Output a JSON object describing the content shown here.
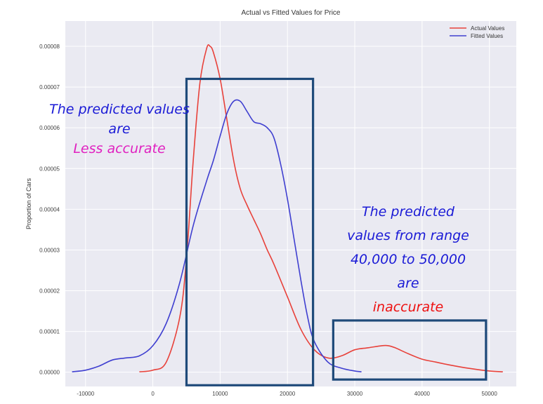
{
  "chart_data": {
    "type": "line",
    "title": "Actual vs Fitted Values for Price",
    "xlabel": "",
    "ylabel": "Proportion of Cars",
    "xlim": [
      -13000,
      54000
    ],
    "ylim": [
      -3.5e-06,
      8.62e-05
    ],
    "xticks": [
      "-10000",
      "0",
      "10000",
      "20000",
      "30000",
      "40000",
      "50000"
    ],
    "xtick_values": [
      -10000,
      0,
      10000,
      20000,
      30000,
      40000,
      50000
    ],
    "yticks": [
      "0.00000",
      "0.00001",
      "0.00002",
      "0.00003",
      "0.00004",
      "0.00005",
      "0.00006",
      "0.00007",
      "0.00008"
    ],
    "ytick_values": [
      0,
      1e-05,
      2e-05,
      3e-05,
      4e-05,
      5e-05,
      6e-05,
      7e-05,
      8e-05
    ],
    "grid": true,
    "legend_position": "top-right",
    "series": [
      {
        "name": "Actual Values",
        "color": "#e8413a",
        "x": [
          -2000,
          0,
          2000,
          4000,
          5000,
          6000,
          7000,
          8000,
          8500,
          9000,
          10000,
          11000,
          12000,
          13000,
          14000,
          15000,
          16000,
          17000,
          18000,
          20000,
          22000,
          24000,
          26000,
          28000,
          30000,
          32000,
          34000,
          35000,
          36000,
          38000,
          40000,
          42000,
          44000,
          46000,
          48000,
          50000,
          52000
        ],
        "values": [
          1e-07,
          5e-07,
          2.5e-06,
          1.35e-05,
          2.8e-05,
          5.2e-05,
          7.1e-05,
          7.95e-05,
          8e-05,
          7.85e-05,
          7.2e-05,
          6.2e-05,
          5.2e-05,
          4.5e-05,
          4.1e-05,
          3.75e-05,
          3.4e-05,
          3e-05,
          2.65e-05,
          1.85e-05,
          1.05e-05,
          5.5e-06,
          3.5e-06,
          4e-06,
          5.5e-06,
          6e-06,
          6.5e-06,
          6.5e-06,
          6e-06,
          4.5e-06,
          3.2e-06,
          2.5e-06,
          1.8e-06,
          1.2e-06,
          7e-07,
          3e-07,
          1e-07
        ]
      },
      {
        "name": "Fitted Values",
        "color": "#3f3fd0",
        "x": [
          -12000,
          -10000,
          -8000,
          -6000,
          -4000,
          -2000,
          0,
          2000,
          4000,
          6000,
          8000,
          9000,
          10000,
          11000,
          12000,
          13000,
          14000,
          15000,
          16000,
          17000,
          18000,
          19000,
          20000,
          21000,
          22000,
          23000,
          24000,
          26000,
          28000,
          30000,
          31000
        ],
        "values": [
          1e-07,
          5e-07,
          1.5e-06,
          3e-06,
          3.5e-06,
          4e-06,
          6.5e-06,
          1.2e-05,
          2.2e-05,
          3.6e-05,
          4.7e-05,
          5.2e-05,
          5.8e-05,
          6.35e-05,
          6.65e-05,
          6.65e-05,
          6.4e-05,
          6.15e-05,
          6.1e-05,
          6e-05,
          5.75e-05,
          5.1e-05,
          4.25e-05,
          3.25e-05,
          2.25e-05,
          1.35e-05,
          7.5e-06,
          2.5e-06,
          1e-06,
          3e-07,
          1e-07
        ]
      }
    ],
    "annotations": {
      "box_left": {
        "x0": 5000,
        "x1": 23800,
        "y0": -3.2e-06,
        "y1": 7.2e-05,
        "color": "#1f4a7a"
      },
      "box_right": {
        "x0": 26800,
        "x1": 49500,
        "y0": -1.8e-06,
        "y1": 1.27e-05,
        "color": "#1f4a7a"
      },
      "note_left": {
        "lines": [
          {
            "text": "The predicted values",
            "color": "#1a1ad6"
          },
          {
            "text": "are",
            "color": "#1a1ad6"
          },
          {
            "text": "Less accurate",
            "color": "#e020c0"
          }
        ]
      },
      "note_right": {
        "lines": [
          {
            "text": "The predicted",
            "color": "#1a1ad6"
          },
          {
            "text": "values from range",
            "color": "#1a1ad6"
          },
          {
            "text": "40,000 to 50,000",
            "color": "#1a1ad6"
          },
          {
            "text": "are",
            "color": "#1a1ad6"
          },
          {
            "text": "inaccurate",
            "color": "#ee1010"
          }
        ]
      }
    }
  }
}
